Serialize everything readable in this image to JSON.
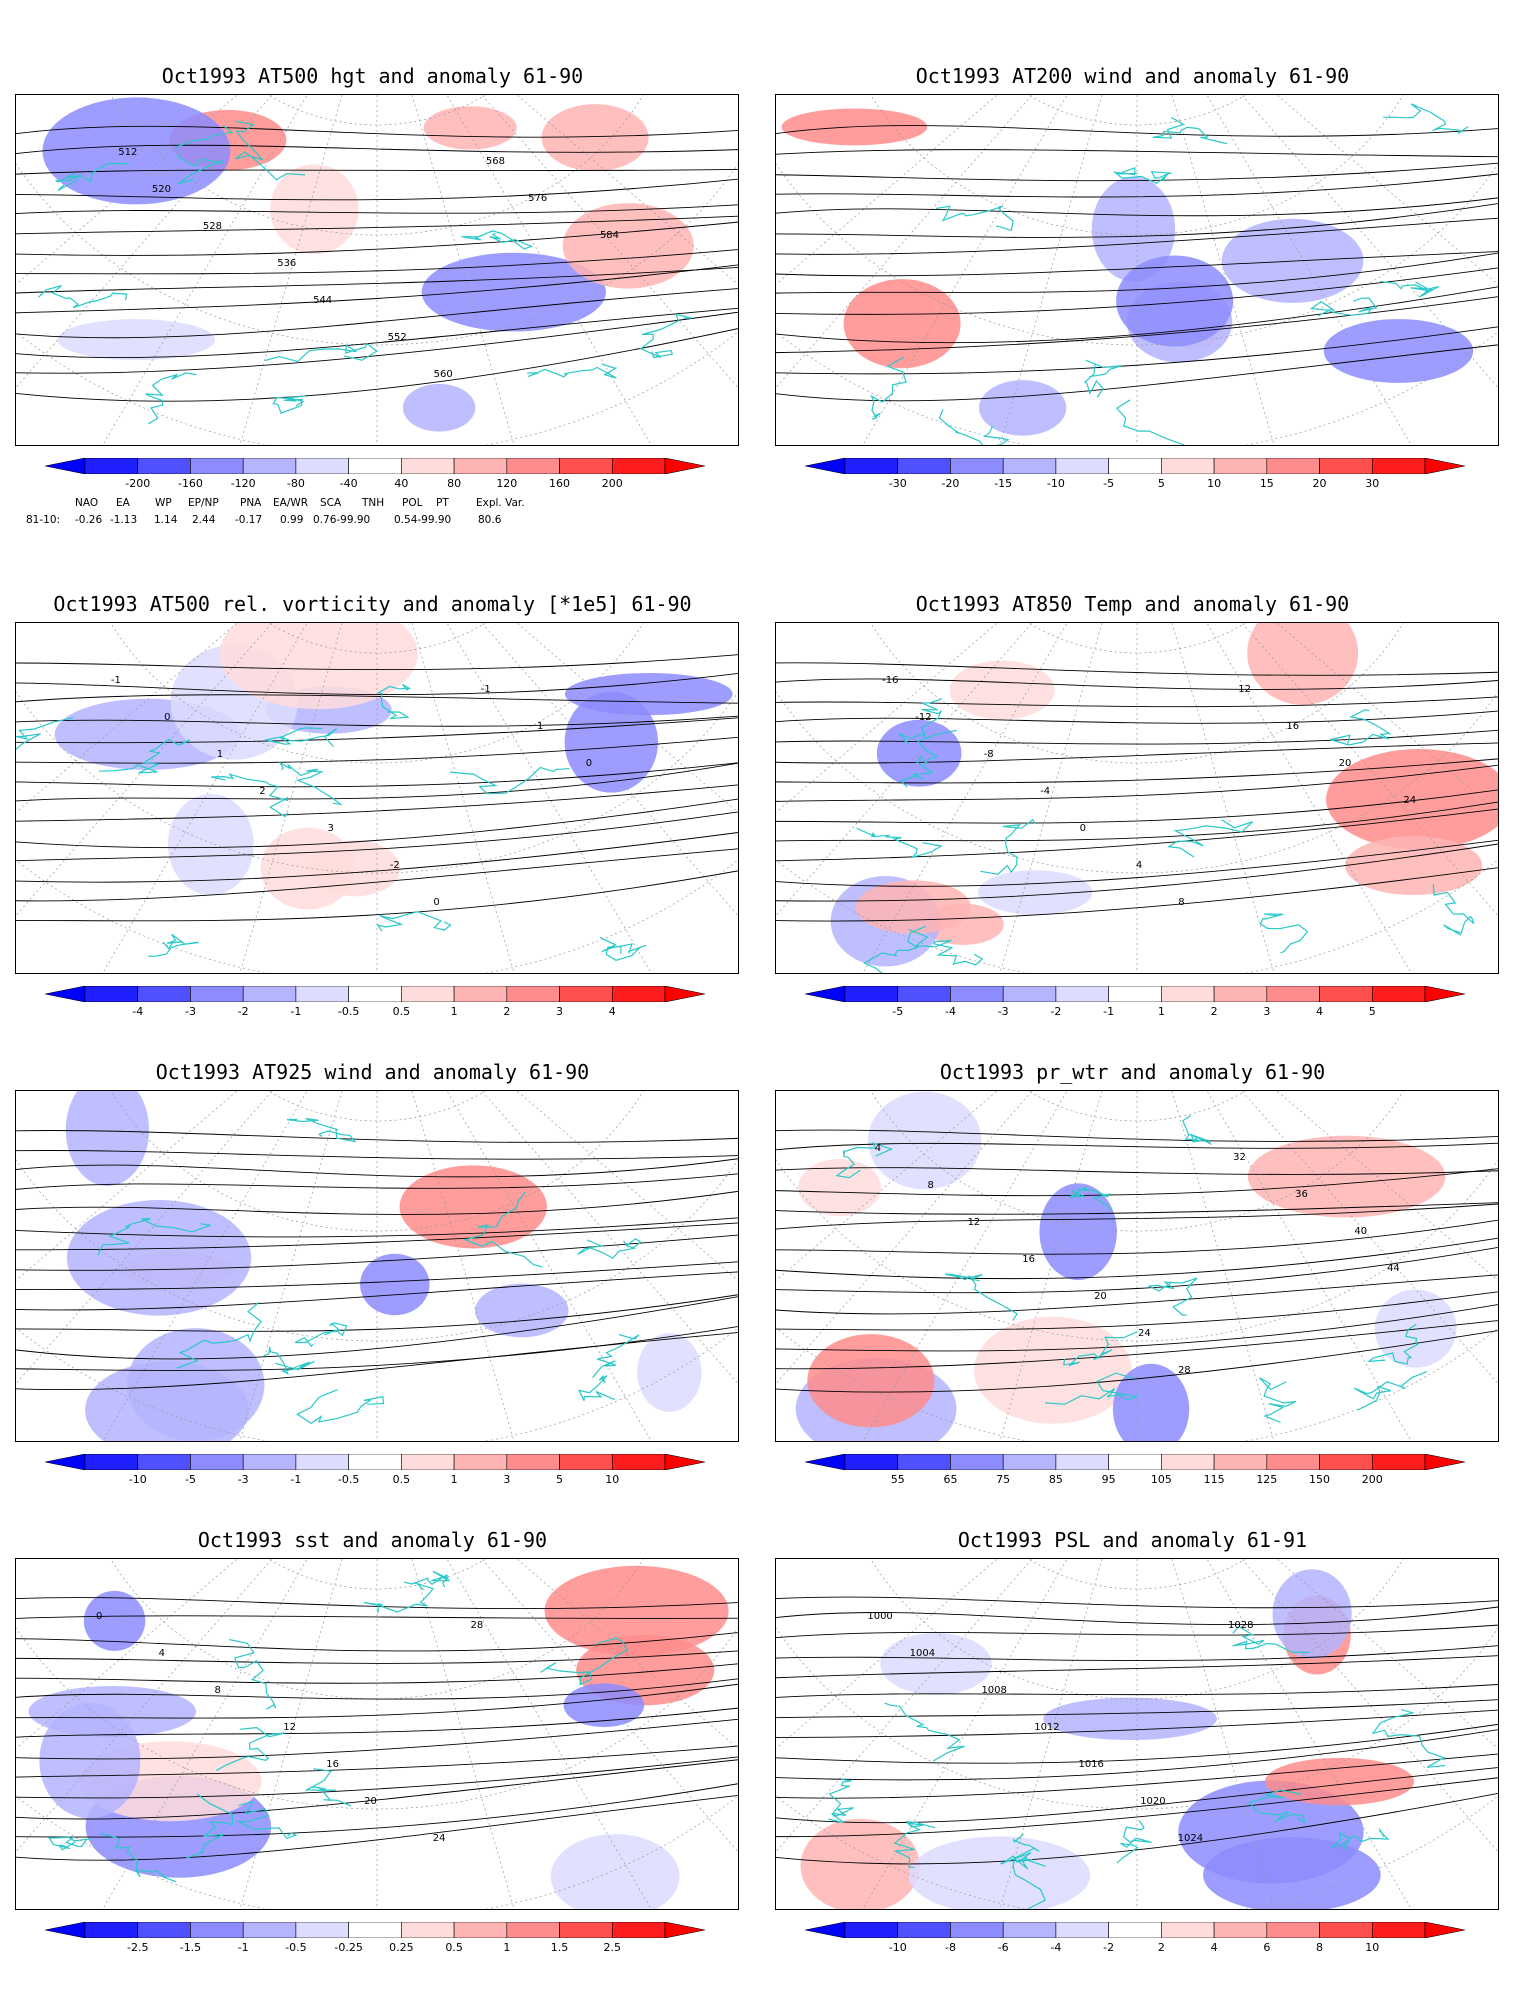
{
  "panels": [
    {
      "title": "Oct1993 AT500 hgt and anomaly 61-90",
      "colorbar": {
        "labels": [
          "-200",
          "-160",
          "-120",
          "-80",
          "-40",
          "40",
          "80",
          "120",
          "160",
          "200"
        ]
      },
      "map_labels": [
        "512",
        "520",
        "528",
        "536",
        "544",
        "552",
        "560",
        "568",
        "576",
        "584"
      ]
    },
    {
      "title": "Oct1993 AT200 wind and anomaly 61-90",
      "colorbar": {
        "labels": [
          "-30",
          "-20",
          "-15",
          "-10",
          "-5",
          "5",
          "10",
          "15",
          "20",
          "30"
        ]
      },
      "map_labels": []
    },
    {
      "title": "Oct1993 AT500 rel. vorticity and anomaly [*1e5] 61-90",
      "colorbar": {
        "labels": [
          "-4",
          "-3",
          "-2",
          "-1",
          "-0.5",
          "0.5",
          "1",
          "2",
          "3",
          "4"
        ]
      },
      "map_labels": [
        "-1",
        "0",
        "1",
        "2",
        "3",
        "-2",
        "0",
        "-1",
        "1",
        "0"
      ]
    },
    {
      "title": "Oct1993 AT850 Temp and anomaly 61-90",
      "colorbar": {
        "labels": [
          "-5",
          "-4",
          "-3",
          "-2",
          "-1",
          "1",
          "2",
          "3",
          "4",
          "5"
        ]
      },
      "map_labels": [
        "-16",
        "-12",
        "-8",
        "-4",
        "0",
        "4",
        "8",
        "12",
        "16",
        "20",
        "24"
      ]
    },
    {
      "title": "Oct1993 AT925 wind and anomaly 61-90",
      "colorbar": {
        "labels": [
          "-10",
          "-5",
          "-3",
          "-1",
          "-0.5",
          "0.5",
          "1",
          "3",
          "5",
          "10"
        ]
      },
      "map_labels": []
    },
    {
      "title": "Oct1993 pr_wtr and anomaly 61-90",
      "colorbar": {
        "labels": [
          "55",
          "65",
          "75",
          "85",
          "95",
          "105",
          "115",
          "125",
          "150",
          "200"
        ]
      },
      "map_labels": [
        "4",
        "8",
        "12",
        "16",
        "20",
        "24",
        "28",
        "32",
        "36",
        "40",
        "44"
      ]
    },
    {
      "title": "Oct1993 sst and anomaly 61-90",
      "colorbar": {
        "labels": [
          "-2.5",
          "-1.5",
          "-1",
          "-0.5",
          "-0.25",
          "0.25",
          "0.5",
          "1",
          "1.5",
          "2.5"
        ]
      },
      "map_labels": [
        "0",
        "4",
        "8",
        "12",
        "16",
        "20",
        "24",
        "28"
      ]
    },
    {
      "title": "Oct1993 PSL and anomaly 61-91",
      "colorbar": {
        "labels": [
          "-10",
          "-8",
          "-6",
          "-4",
          "-2",
          "2",
          "4",
          "6",
          "8",
          "10"
        ]
      },
      "map_labels": [
        "1000",
        "1004",
        "1008",
        "1012",
        "1016",
        "1020",
        "1024",
        "1028"
      ]
    }
  ],
  "indices": {
    "headers": [
      "NAO",
      "EA",
      "WP",
      "EP/NP",
      "PNA",
      "EA/WR",
      "SCA",
      "TNH",
      "POL",
      "PT",
      "Expl. Var."
    ],
    "row_label": "81-10:",
    "values": [
      "-0.26",
      "-1.13",
      "1.14",
      "2.44",
      "-0.17",
      "0.99",
      "0.76-99.90",
      "0.54-99.90",
      "80.6"
    ]
  },
  "colors": {
    "coast": "#2ac8c8",
    "contour": "#000000",
    "neg": [
      "#1e1eff",
      "#5050ff",
      "#8c8cff",
      "#b4b4ff",
      "#dcdcff"
    ],
    "pos": [
      "#ffdcdc",
      "#ffb4b4",
      "#ff8c8c",
      "#ff5050",
      "#ff1e1e"
    ]
  }
}
